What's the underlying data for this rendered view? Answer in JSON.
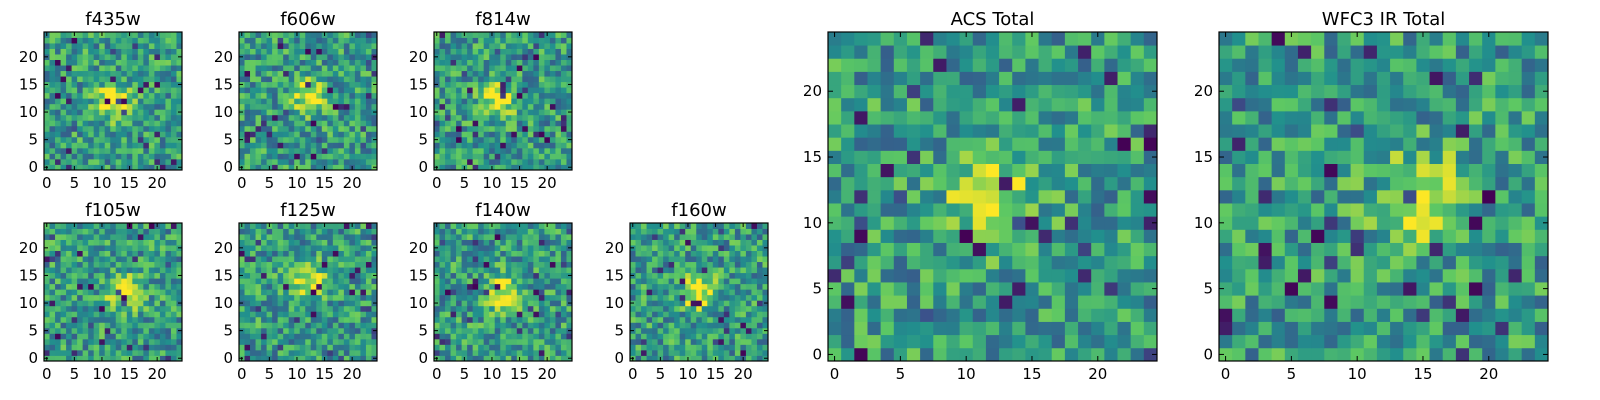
{
  "figure": {
    "colormap": "viridis",
    "colors": [
      "#440154",
      "#3b528b",
      "#21908d",
      "#5dc863",
      "#fde725"
    ]
  },
  "chart_data": [
    {
      "type": "heatmap",
      "title": "f435w",
      "grid": false,
      "xlim": [
        -0.5,
        24.5
      ],
      "ylim": [
        -0.5,
        24.5
      ],
      "xticks": [
        0,
        5,
        10,
        15,
        20
      ],
      "yticks": [
        0,
        5,
        10,
        15,
        20
      ],
      "size": 25
    },
    {
      "type": "heatmap",
      "title": "f606w",
      "grid": false,
      "xlim": [
        -0.5,
        24.5
      ],
      "ylim": [
        -0.5,
        24.5
      ],
      "xticks": [
        0,
        5,
        10,
        15,
        20
      ],
      "yticks": [
        0,
        5,
        10,
        15,
        20
      ],
      "size": 25
    },
    {
      "type": "heatmap",
      "title": "f814w",
      "grid": false,
      "xlim": [
        -0.5,
        24.5
      ],
      "ylim": [
        -0.5,
        24.5
      ],
      "xticks": [
        0,
        5,
        10,
        15,
        20
      ],
      "yticks": [
        0,
        5,
        10,
        15,
        20
      ],
      "size": 25
    },
    {
      "type": "heatmap",
      "title": "f105w",
      "grid": false,
      "xlim": [
        -0.5,
        24.5
      ],
      "ylim": [
        -0.5,
        24.5
      ],
      "xticks": [
        0,
        5,
        10,
        15,
        20
      ],
      "yticks": [
        0,
        5,
        10,
        15,
        20
      ],
      "size": 25
    },
    {
      "type": "heatmap",
      "title": "f125w",
      "grid": false,
      "xlim": [
        -0.5,
        24.5
      ],
      "ylim": [
        -0.5,
        24.5
      ],
      "xticks": [
        0,
        5,
        10,
        15,
        20
      ],
      "yticks": [
        0,
        5,
        10,
        15,
        20
      ],
      "size": 25
    },
    {
      "type": "heatmap",
      "title": "f140w",
      "grid": false,
      "xlim": [
        -0.5,
        24.5
      ],
      "ylim": [
        -0.5,
        24.5
      ],
      "xticks": [
        0,
        5,
        10,
        15,
        20
      ],
      "yticks": [
        0,
        5,
        10,
        15,
        20
      ],
      "size": 25
    },
    {
      "type": "heatmap",
      "title": "f160w",
      "grid": false,
      "xlim": [
        -0.5,
        24.5
      ],
      "ylim": [
        -0.5,
        24.5
      ],
      "xticks": [
        0,
        5,
        10,
        15,
        20
      ],
      "yticks": [
        0,
        5,
        10,
        15,
        20
      ],
      "size": 25
    },
    {
      "type": "heatmap",
      "title": "ACS Total",
      "grid": false,
      "xlim": [
        -0.5,
        24.5
      ],
      "ylim": [
        -0.5,
        24.5
      ],
      "xticks": [
        0,
        5,
        10,
        15,
        20
      ],
      "yticks": [
        0,
        5,
        10,
        15,
        20
      ],
      "size": 25
    },
    {
      "type": "heatmap",
      "title": "WFC3 IR Total",
      "grid": false,
      "xlim": [
        -0.5,
        24.5
      ],
      "ylim": [
        -0.5,
        24.5
      ],
      "xticks": [
        0,
        5,
        10,
        15,
        20
      ],
      "yticks": [
        0,
        5,
        10,
        15,
        20
      ],
      "size": 25
    }
  ]
}
